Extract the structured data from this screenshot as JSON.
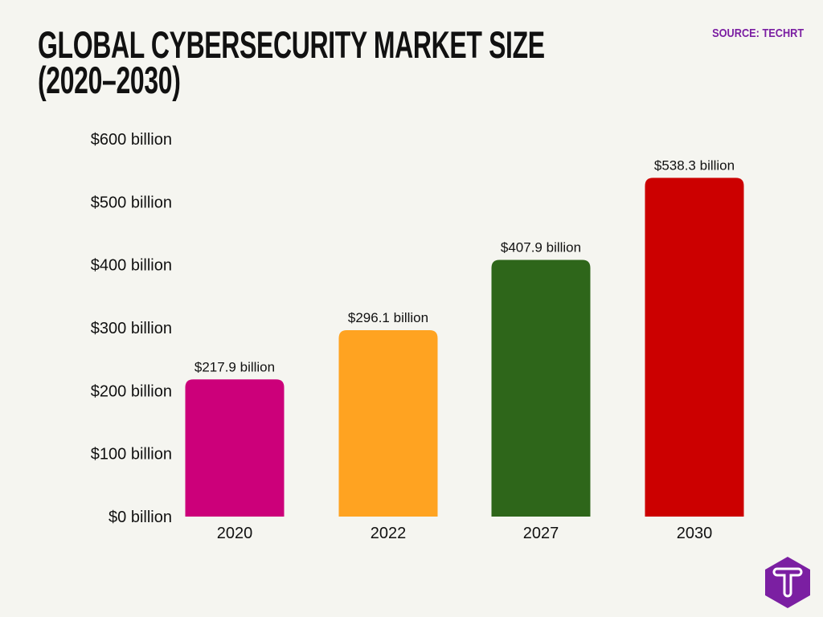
{
  "title_lines": [
    "GLOBAL CYBERSECURITY MARKET SIZE",
    "(2020–2030)"
  ],
  "source": "SOURCE: TECHRT",
  "logo": {
    "icon": "techrt-t-hexagon-logo",
    "color": "#7b1fa2",
    "text": "T"
  },
  "chart_data": {
    "type": "bar",
    "title": "GLOBAL CYBERSECURITY MARKET SIZE (2020–2030)",
    "categories": [
      "2020",
      "2022",
      "2027",
      "2030"
    ],
    "values": [
      217.9,
      296.1,
      407.9,
      538.3
    ],
    "data_labels": [
      "$217.9 billion",
      "$296.1 billion",
      "$407.9 billion",
      "$538.3 billion"
    ],
    "colors": [
      "#cc007a",
      "#ffa321",
      "#2e661a",
      "#cc0000"
    ],
    "ylim": [
      0,
      600
    ],
    "yticks": [
      0,
      100,
      200,
      300,
      400,
      500,
      600
    ],
    "ytick_labels": [
      "$0 billion",
      "$100 billion",
      "$200 billion",
      "$300 billion",
      "$400 billion",
      "$500 billion",
      "$600 billion"
    ],
    "xlabel": "",
    "ylabel": "",
    "grid": false,
    "legend": "none"
  }
}
